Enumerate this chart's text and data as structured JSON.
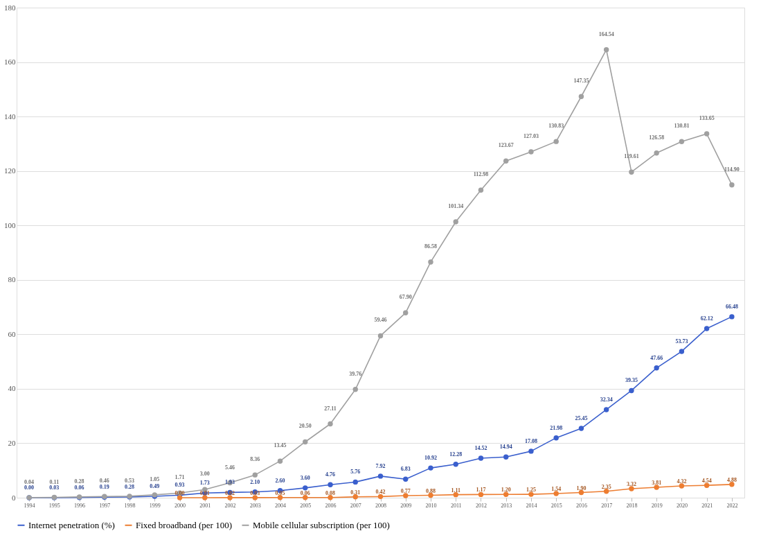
{
  "chart_data": {
    "type": "line",
    "categories": [
      "1994",
      "1995",
      "1996",
      "1997",
      "1998",
      "1999",
      "2000",
      "2001",
      "2002",
      "2003",
      "2004",
      "2005",
      "2006",
      "2007",
      "2008",
      "2009",
      "2010",
      "2011",
      "2012",
      "2013",
      "2014",
      "2015",
      "2016",
      "2017",
      "2018",
      "2019",
      "2020",
      "2021",
      "2022"
    ],
    "series": [
      {
        "name": "Internet penetration (%)",
        "color": "#3a5fcd",
        "values": [
          0.0,
          0.03,
          0.06,
          0.19,
          0.28,
          0.49,
          0.93,
          1.73,
          1.93,
          2.1,
          2.6,
          3.6,
          4.76,
          5.76,
          7.92,
          6.83,
          10.92,
          12.28,
          14.52,
          14.94,
          17.08,
          21.98,
          25.45,
          32.34,
          39.35,
          47.66,
          53.73,
          62.12,
          66.48
        ],
        "value_labels": [
          "0.00",
          "0.03",
          "0.06",
          "0.19",
          "0.28",
          "0.49",
          "0.93",
          "1.73",
          "1.93",
          "2.10",
          "2.60",
          "3.60",
          "4.76",
          "5.76",
          "7.92",
          "6.83",
          "10.92",
          "12.28",
          "14.52",
          "14.94",
          "17.08",
          "21.98",
          "25.45",
          "32.34",
          "39.35",
          "47.66",
          "53.73",
          "62.12",
          "66.48"
        ]
      },
      {
        "name": "Fixed broadband (per 100)",
        "color": "#ed7d31",
        "values": [
          null,
          null,
          null,
          null,
          null,
          null,
          0.0,
          0.01,
          0.02,
          0.03,
          0.05,
          0.06,
          0.08,
          0.31,
          0.42,
          0.77,
          0.88,
          1.11,
          1.17,
          1.2,
          1.25,
          1.54,
          1.9,
          2.35,
          3.32,
          3.81,
          4.32,
          4.54,
          4.88
        ],
        "value_labels": [
          null,
          null,
          null,
          null,
          null,
          null,
          "0.00",
          "0.01",
          "0.02",
          "0.03",
          "0.05",
          "0.06",
          "0.08",
          "0.31",
          "0.42",
          "0.77",
          "0.88",
          "1.11",
          "1.17",
          "1.20",
          "1.25",
          "1.54",
          "1.90",
          "2.35",
          "3.32",
          "3.81",
          "4.32",
          "4.54",
          "4.88"
        ]
      },
      {
        "name": "Mobile cellular subscription (per 100)",
        "color": "#a0a0a0",
        "values": [
          0.04,
          0.11,
          0.28,
          0.46,
          0.53,
          1.05,
          1.71,
          3.0,
          5.46,
          8.36,
          13.45,
          20.5,
          27.11,
          39.76,
          59.46,
          67.9,
          86.58,
          101.34,
          112.98,
          123.67,
          127.03,
          130.83,
          147.35,
          164.54,
          119.61,
          126.58,
          130.81,
          133.65,
          114.9
        ],
        "value_labels": [
          "0.04",
          "0.11",
          "0.28",
          "0.46",
          "0.53",
          "1.05",
          "1.71",
          "3.00",
          "5.46",
          "8.36",
          "13.45",
          "20.50",
          "27.11",
          "39.76",
          "59.46",
          "67.90",
          "86.58",
          "101.34",
          "112.98",
          "123.67",
          "127.03",
          "130.83",
          "147.35",
          "164.54",
          "119.61",
          "126.58",
          "130.81",
          "133.65",
          "114.90"
        ]
      }
    ],
    "ylim": [
      0,
      180
    ],
    "yticks": [
      0,
      20,
      40,
      60,
      80,
      100,
      120,
      140,
      160,
      180
    ],
    "grid": "y",
    "legend": "bottom",
    "marker": "circle",
    "line_style": "solid"
  }
}
